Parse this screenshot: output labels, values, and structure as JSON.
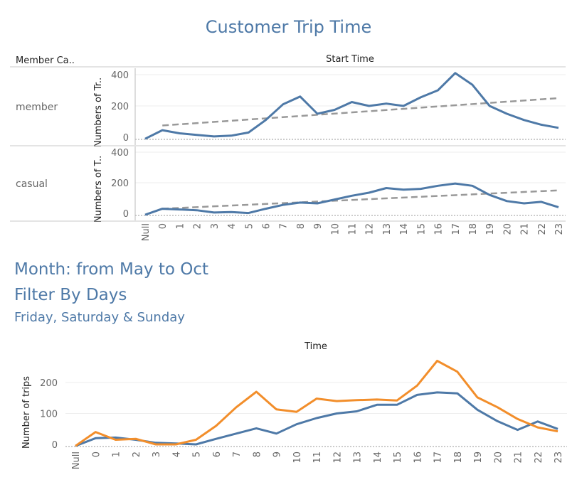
{
  "page": {
    "title": "Customer Trip Time",
    "filter_lines": [
      "Month: from May to Oct",
      "Filter By Days",
      "Friday, Saturday & Sunday"
    ]
  },
  "colors": {
    "blue": "#4e79a7",
    "orange": "#f28e2b",
    "trend": "#999999"
  },
  "chart_data": [
    {
      "type": "line",
      "title": "Start Time",
      "row_header": "Member Ca..",
      "x_categories": [
        "Null",
        "0",
        "1",
        "2",
        "3",
        "4",
        "5",
        "6",
        "7",
        "8",
        "9",
        "10",
        "11",
        "12",
        "13",
        "14",
        "15",
        "16",
        "17",
        "18",
        "19",
        "20",
        "21",
        "22",
        "23"
      ],
      "panels": [
        {
          "name": "member",
          "ylabel": "Numbers of Tr..",
          "yticks": [
            0,
            200,
            400
          ],
          "ylim": [
            -20,
            420
          ],
          "values": [
            -10,
            45,
            25,
            15,
            5,
            10,
            30,
            110,
            210,
            260,
            150,
            175,
            225,
            200,
            215,
            200,
            255,
            300,
            410,
            335,
            200,
            150,
            110,
            80,
            60
          ],
          "trendline": {
            "start_category": "0",
            "start": 75,
            "end": 250
          }
        },
        {
          "name": "casual",
          "ylabel": "Numbers of T..",
          "yticks": [
            0,
            200,
            400
          ],
          "ylim": [
            -20,
            420
          ],
          "values": [
            -10,
            30,
            25,
            20,
            5,
            8,
            2,
            30,
            55,
            70,
            65,
            90,
            115,
            135,
            165,
            155,
            160,
            180,
            195,
            180,
            120,
            80,
            65,
            75,
            40
          ],
          "trendline": {
            "start_category": "0",
            "start": 30,
            "end": 150
          }
        }
      ]
    },
    {
      "type": "line",
      "title": "Time",
      "ylabel": "Number of trips",
      "yticks": [
        0,
        100,
        200
      ],
      "ylim": [
        -10,
        290
      ],
      "x_categories": [
        "Null",
        "0",
        "1",
        "2",
        "3",
        "4",
        "5",
        "6",
        "7",
        "8",
        "9",
        "10",
        "11",
        "12",
        "13",
        "14",
        "15",
        "16",
        "17",
        "18",
        "19",
        "20",
        "21",
        "22",
        "23"
      ],
      "series": [
        {
          "color": "#4e79a7",
          "values": [
            -5,
            20,
            22,
            15,
            5,
            3,
            0,
            18,
            35,
            52,
            35,
            65,
            85,
            100,
            107,
            128,
            128,
            160,
            168,
            165,
            112,
            75,
            47,
            74,
            50
          ]
        },
        {
          "color": "#f28e2b",
          "values": [
            -5,
            40,
            15,
            18,
            0,
            0,
            15,
            60,
            120,
            170,
            113,
            105,
            148,
            140,
            143,
            145,
            142,
            190,
            270,
            235,
            152,
            120,
            82,
            55,
            42
          ]
        }
      ]
    }
  ]
}
